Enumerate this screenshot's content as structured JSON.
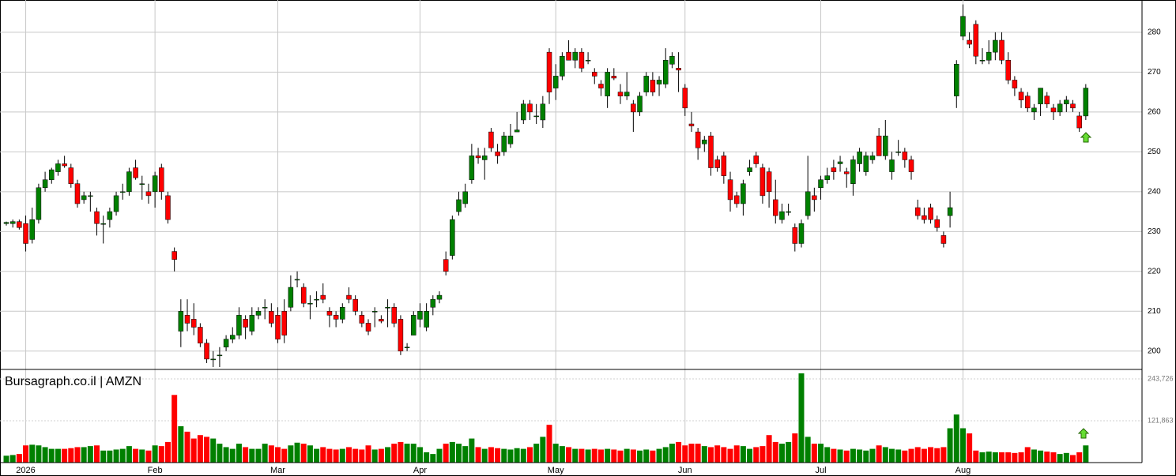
{
  "chart_data": {
    "type": "candlestick",
    "title": "Bursagraph.co.il | AMZN",
    "up_color": "#008000",
    "down_color": "#ff0000",
    "grid": true,
    "xlim": [
      -0.98,
      175.7
    ],
    "xticks": [
      {
        "value": 3,
        "label": "2026"
      },
      {
        "value": 23,
        "label": "Feb"
      },
      {
        "value": 42,
        "label": "Mar"
      },
      {
        "value": 64,
        "label": "Apr"
      },
      {
        "value": 85,
        "label": "May"
      },
      {
        "value": 105,
        "label": "Jun"
      },
      {
        "value": 126,
        "label": "Jul"
      },
      {
        "value": 148,
        "label": "Aug"
      }
    ],
    "ylim": [
      195.4,
      288.1
    ],
    "yticks": [
      200,
      210,
      220,
      230,
      240,
      250,
      260,
      270,
      280
    ],
    "volume_ylim": [
      0,
      271300
    ],
    "volume_yticks": [
      {
        "value": 121863,
        "label": "121,863"
      },
      {
        "value": 243726,
        "label": "243,726"
      }
    ],
    "x": [
      0,
      1,
      2,
      3,
      4,
      5,
      6,
      7,
      8,
      9,
      10,
      11,
      12,
      13,
      14,
      15,
      16,
      17,
      18,
      19,
      20,
      21,
      22,
      23,
      24,
      25,
      26,
      27,
      28,
      29,
      30,
      31,
      32,
      33,
      34,
      35,
      36,
      37,
      38,
      39,
      40,
      41,
      42,
      43,
      44,
      45,
      46,
      47,
      48,
      49,
      50,
      51,
      52,
      53,
      54,
      55,
      56,
      57,
      58,
      59,
      60,
      61,
      62,
      63,
      64,
      65,
      66,
      67,
      68,
      69,
      70,
      71,
      72,
      73,
      74,
      75,
      76,
      77,
      78,
      79,
      80,
      81,
      82,
      83,
      84,
      85,
      86,
      87,
      88,
      89,
      90,
      91,
      92,
      93,
      94,
      95,
      96,
      97,
      98,
      99,
      100,
      101,
      102,
      103,
      104,
      105,
      106,
      107,
      108,
      109,
      110,
      111,
      112,
      113,
      114,
      115,
      116,
      117,
      118,
      119,
      120,
      121,
      122,
      123,
      124,
      125,
      126,
      127,
      128,
      129,
      130,
      131,
      132,
      133,
      134,
      135,
      136,
      137,
      138,
      139,
      140,
      141,
      142,
      143,
      144,
      145,
      146,
      147,
      148,
      149,
      150,
      151,
      152,
      153,
      154,
      155,
      156,
      157,
      158,
      159,
      160,
      161,
      162,
      163,
      164,
      165,
      166,
      167
    ],
    "open": [
      232,
      232,
      232.5,
      232,
      228,
      233,
      241,
      243,
      245,
      247,
      246,
      242,
      238,
      239,
      235,
      232,
      233,
      235,
      240,
      240,
      246,
      242,
      240,
      240,
      246,
      239,
      225,
      205,
      209,
      208,
      206,
      202,
      198,
      199,
      201,
      203,
      204,
      208,
      205,
      209,
      211,
      210,
      209,
      210,
      211,
      218,
      216,
      212,
      213,
      214,
      210,
      209,
      208,
      214,
      213,
      209,
      207,
      210,
      208,
      211,
      211,
      208,
      201,
      204,
      208,
      206,
      211,
      213,
      223,
      224,
      235,
      237,
      243,
      249,
      248,
      255,
      250,
      250,
      252,
      255,
      258,
      262,
      259,
      258,
      275,
      266,
      269,
      275,
      273,
      275,
      273,
      270,
      267,
      264,
      269,
      265,
      264,
      262,
      260,
      265,
      268,
      267,
      267,
      272,
      271,
      266,
      257,
      255,
      252,
      254,
      248,
      249,
      243,
      239,
      237,
      245,
      249,
      246,
      245,
      238,
      233,
      235,
      231,
      227,
      234,
      239,
      241,
      243,
      246,
      247,
      245,
      242,
      247,
      245,
      248,
      254,
      249,
      245,
      250,
      250,
      248,
      236,
      234,
      236,
      233,
      229,
      234,
      264,
      279,
      278,
      282,
      273,
      273,
      275,
      278,
      273,
      268,
      265,
      264,
      260,
      262,
      264,
      261,
      260,
      262,
      262,
      259,
      259
    ],
    "high": [
      232.5,
      233,
      233,
      234,
      236,
      242,
      245,
      246,
      248,
      249,
      247,
      243,
      240,
      240,
      236,
      234,
      236,
      240,
      242,
      246,
      248,
      244,
      242,
      245,
      247,
      240,
      226,
      213,
      213,
      212,
      207,
      203,
      200,
      201,
      204,
      206,
      211,
      209,
      211,
      211,
      213,
      212,
      211,
      213,
      219,
      220,
      217,
      214,
      215,
      217,
      211,
      210,
      212,
      216,
      214,
      210,
      208,
      211,
      209,
      213,
      212,
      209,
      202,
      210,
      212,
      212,
      214,
      215,
      225,
      234,
      240,
      242,
      252,
      251,
      251,
      256,
      252,
      255,
      257,
      260,
      263,
      263,
      262,
      264,
      276,
      272,
      275,
      278,
      276,
      276,
      275,
      271,
      268,
      271,
      271,
      267,
      270,
      263,
      265,
      270,
      270,
      269,
      276,
      275,
      275,
      267,
      260,
      256,
      254,
      255,
      249,
      250,
      245,
      240,
      243,
      248,
      250,
      247,
      246,
      243,
      237,
      237,
      232,
      233,
      249,
      241,
      244,
      246,
      248,
      249,
      246,
      249,
      251,
      250,
      250,
      256,
      258,
      250,
      253,
      251,
      249,
      238,
      236,
      237,
      234,
      230,
      240,
      273,
      287,
      280,
      283,
      276,
      278,
      280,
      280,
      275,
      269,
      266,
      265,
      262,
      266,
      265,
      262,
      263,
      264,
      263,
      260,
      267
    ],
    "low": [
      231.5,
      231,
      230.5,
      225,
      227,
      232,
      240,
      242,
      244,
      246,
      241,
      236,
      237,
      235,
      229,
      227,
      231,
      234,
      238,
      239,
      243,
      238,
      237,
      236,
      238,
      232,
      220,
      201,
      205,
      204,
      201,
      197,
      196,
      196,
      200,
      202,
      203,
      203,
      204,
      208,
      208,
      206,
      202,
      202,
      210,
      216,
      211,
      208,
      211,
      212,
      206,
      206,
      207,
      212,
      209,
      206,
      204,
      206,
      207,
      206,
      206,
      199,
      200,
      204,
      206,
      205,
      209,
      212,
      219,
      223,
      234,
      236,
      242,
      247,
      243,
      250,
      247,
      249,
      251,
      255,
      257,
      258,
      257,
      256,
      262,
      263,
      268,
      273,
      271,
      270,
      272,
      267,
      264,
      261,
      268,
      262,
      263,
      255,
      259,
      264,
      264,
      264,
      266,
      271,
      265,
      259,
      255,
      248,
      250,
      244,
      245,
      242,
      235,
      236,
      234,
      244,
      246,
      237,
      236,
      232,
      232,
      234,
      225,
      226,
      233,
      235,
      238,
      242,
      243,
      245,
      241,
      239,
      245,
      244,
      247,
      249,
      248,
      243,
      249,
      246,
      243,
      233,
      232,
      232,
      230,
      226,
      231,
      261,
      278,
      276,
      272,
      272,
      272,
      273,
      272,
      267,
      264,
      261,
      260,
      258,
      259,
      261,
      258,
      259,
      260,
      260,
      255,
      258
    ],
    "close": [
      232.3,
      232.5,
      231,
      227,
      233,
      241,
      243,
      245.5,
      247,
      246.5,
      242,
      237,
      239,
      239,
      232,
      232,
      235,
      239,
      240,
      245,
      243.5,
      242,
      239,
      244,
      240,
      233,
      223,
      210,
      207,
      206,
      202,
      198,
      198,
      199,
      203,
      204,
      209,
      206,
      209,
      210,
      211,
      207,
      203,
      204,
      216,
      218,
      212,
      212,
      213,
      213,
      209,
      208,
      211,
      213,
      210,
      207,
      205,
      210,
      207.5,
      211,
      207,
      200,
      201,
      209,
      210,
      210,
      213,
      214,
      220,
      233,
      238,
      240,
      249,
      248.5,
      249,
      251,
      249,
      254,
      254,
      255.5,
      262,
      260,
      259,
      262,
      265,
      269,
      274,
      273,
      275,
      271,
      273,
      269,
      266,
      270,
      268.5,
      264,
      265,
      260,
      264,
      269,
      265,
      268,
      273,
      274,
      270.5,
      261,
      256.5,
      251,
      253,
      246,
      246,
      244,
      238,
      237,
      242,
      246,
      247,
      239,
      240,
      234,
      235,
      235,
      227,
      232,
      240,
      238,
      243,
      244,
      245,
      247.5,
      244.5,
      248,
      250,
      249,
      249,
      249,
      254,
      248,
      250,
      248,
      245,
      234,
      233,
      233,
      231,
      227,
      236,
      272,
      284,
      277,
      274,
      273,
      275,
      278,
      273,
      268,
      266,
      263,
      261,
      261,
      266,
      262,
      260,
      262,
      263,
      261,
      256,
      266
    ],
    "volume": [
      20000,
      22000,
      25000,
      50000,
      52000,
      50000,
      45000,
      40000,
      40000,
      40000,
      42000,
      45000,
      45000,
      48000,
      50000,
      35000,
      35000,
      38000,
      40000,
      48000,
      40000,
      38000,
      35000,
      50000,
      48000,
      60000,
      197000,
      106000,
      90000,
      70000,
      80000,
      75000,
      70000,
      55000,
      45000,
      40000,
      55000,
      45000,
      40000,
      40000,
      55000,
      50000,
      45000,
      40000,
      50000,
      58000,
      55000,
      50000,
      40000,
      45000,
      40000,
      38000,
      40000,
      45000,
      40000,
      38000,
      50000,
      38000,
      40000,
      45000,
      55000,
      60000,
      55000,
      55000,
      45000,
      30000,
      25000,
      40000,
      55000,
      60000,
      55000,
      48000,
      70000,
      45000,
      40000,
      45000,
      42000,
      40000,
      38000,
      42000,
      40000,
      45000,
      55000,
      75000,
      110000,
      55000,
      48000,
      45000,
      40000,
      40000,
      38000,
      40000,
      38000,
      40000,
      38000,
      35000,
      40000,
      38000,
      35000,
      38000,
      35000,
      40000,
      45000,
      55000,
      60000,
      50000,
      55000,
      55000,
      48000,
      45000,
      50000,
      45000,
      40000,
      50000,
      48000,
      40000,
      45000,
      48000,
      80000,
      60000,
      55000,
      60000,
      85000,
      260000,
      75000,
      55000,
      55000,
      45000,
      40000,
      38000,
      35000,
      40000,
      38000,
      35000,
      40000,
      50000,
      45000,
      40000,
      38000,
      35000,
      40000,
      45000,
      40000,
      45000,
      42000,
      45000,
      100000,
      140000,
      100000,
      85000,
      35000,
      30000,
      32000,
      30000,
      30000,
      30000,
      28000,
      30000,
      45000,
      38000,
      35000,
      32000,
      30000,
      25000,
      28000,
      22000,
      30000,
      50000
    ]
  }
}
